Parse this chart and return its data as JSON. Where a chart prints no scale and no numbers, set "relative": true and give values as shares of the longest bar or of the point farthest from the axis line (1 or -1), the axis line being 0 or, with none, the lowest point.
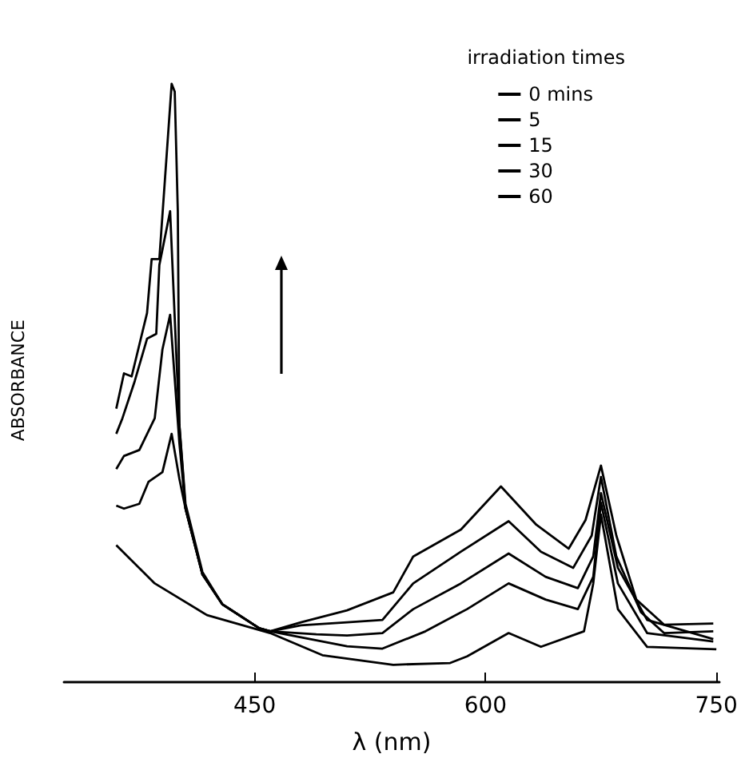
{
  "chart_data": {
    "type": "line",
    "relative": true,
    "xlabel": "λ (nm)",
    "ylabel": "ABSORBANCE",
    "legend_title": "irradiation times",
    "legend": "top right",
    "marker": "none",
    "xlim": [
      326,
      752
    ],
    "xticks": [
      450,
      600,
      750
    ],
    "series": [
      {
        "name": "0 mins",
        "color": "#000000",
        "x": [
          360,
          385,
          419,
          460,
          494,
          540,
          577,
          588,
          615,
          636,
          664,
          670,
          675,
          686,
          705,
          750
        ],
        "values": [
          0.229,
          0.165,
          0.112,
          0.082,
          0.045,
          0.029,
          0.032,
          0.043,
          0.082,
          0.059,
          0.085,
          0.165,
          0.28,
          0.122,
          0.059,
          0.055
        ]
      },
      {
        "name": "5",
        "color": "#000000",
        "x": [
          360,
          365,
          375,
          381,
          390,
          396,
          401,
          405,
          416,
          429,
          453,
          460,
          490,
          510,
          533,
          561,
          588,
          615,
          639,
          660,
          670,
          675,
          686,
          705,
          748
        ],
        "values": [
          0.295,
          0.29,
          0.298,
          0.335,
          0.351,
          0.415,
          0.34,
          0.29,
          0.18,
          0.13,
          0.09,
          0.085,
          0.07,
          0.06,
          0.056,
          0.085,
          0.122,
          0.165,
          0.138,
          0.122,
          0.176,
          0.3,
          0.165,
          0.082,
          0.068
        ]
      },
      {
        "name": "15",
        "color": "#000000",
        "x": [
          360,
          365,
          375,
          385,
          390,
          395,
          401,
          405,
          416,
          429,
          453,
          460,
          490,
          510,
          533,
          553,
          584,
          615,
          639,
          660,
          670,
          675,
          686,
          705,
          748
        ],
        "values": [
          0.356,
          0.378,
          0.388,
          0.441,
          0.556,
          0.614,
          0.4,
          0.29,
          0.18,
          0.13,
          0.09,
          0.085,
          0.08,
          0.078,
          0.082,
          0.122,
          0.165,
          0.215,
          0.176,
          0.157,
          0.21,
          0.316,
          0.191,
          0.104,
          0.072
        ]
      },
      {
        "name": "30",
        "color": "#000000",
        "x": [
          360,
          364,
          372,
          380,
          386,
          388,
          395,
          401,
          405,
          416,
          429,
          453,
          460,
          480,
          510,
          533,
          553,
          584,
          615,
          636,
          657,
          669,
          675,
          685,
          701,
          716,
          748
        ],
        "values": [
          0.415,
          0.441,
          0.503,
          0.574,
          0.582,
          0.697,
          0.787,
          0.43,
          0.29,
          0.18,
          0.13,
          0.09,
          0.085,
          0.095,
          0.1,
          0.104,
          0.165,
          0.218,
          0.269,
          0.218,
          0.191,
          0.245,
          0.343,
          0.21,
          0.117,
          0.082,
          0.085
        ]
      },
      {
        "name": "60",
        "color": "#000000",
        "x": [
          360,
          365,
          370,
          380,
          383,
          388,
          396,
          398,
          400,
          401,
          405,
          416,
          429,
          453,
          460,
          480,
          510,
          540,
          553,
          584,
          610,
          633,
          654,
          665,
          675,
          685,
          698,
          716,
          748
        ],
        "values": [
          0.457,
          0.516,
          0.511,
          0.617,
          0.707,
          0.707,
          1.0,
          0.987,
          0.787,
          0.431,
          0.298,
          0.184,
          0.13,
          0.09,
          0.085,
          0.1,
          0.12,
          0.15,
          0.21,
          0.255,
          0.327,
          0.263,
          0.223,
          0.271,
          0.362,
          0.245,
          0.138,
          0.096,
          0.098
        ]
      }
    ]
  }
}
